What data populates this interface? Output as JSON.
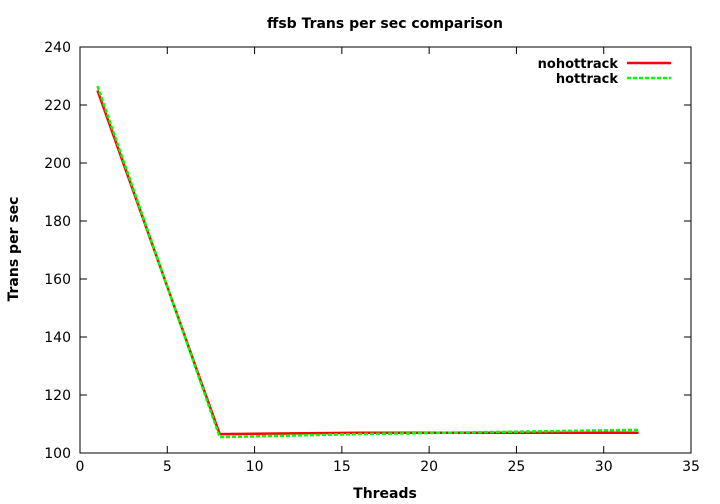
{
  "chart_data": {
    "type": "line",
    "title": "ffsb Trans per sec comparison",
    "xlabel": "Threads",
    "ylabel": "Trans per sec",
    "xlim": [
      0,
      35
    ],
    "ylim": [
      100,
      240
    ],
    "x_ticks": [
      0,
      5,
      10,
      15,
      20,
      25,
      30,
      35
    ],
    "y_ticks": [
      100,
      120,
      140,
      160,
      180,
      200,
      220,
      240
    ],
    "grid": false,
    "legend_position": "top-right",
    "series": [
      {
        "name": "nohottrack",
        "color": "#ff0000",
        "dash": "solid",
        "x": [
          1,
          8,
          16,
          32
        ],
        "y": [
          225,
          106.5,
          107,
          107
        ]
      },
      {
        "name": "hottrack",
        "color": "#00ff00",
        "dash": "dashed",
        "x": [
          1,
          8,
          16,
          32
        ],
        "y": [
          226.5,
          105.5,
          106.5,
          108
        ]
      }
    ]
  }
}
